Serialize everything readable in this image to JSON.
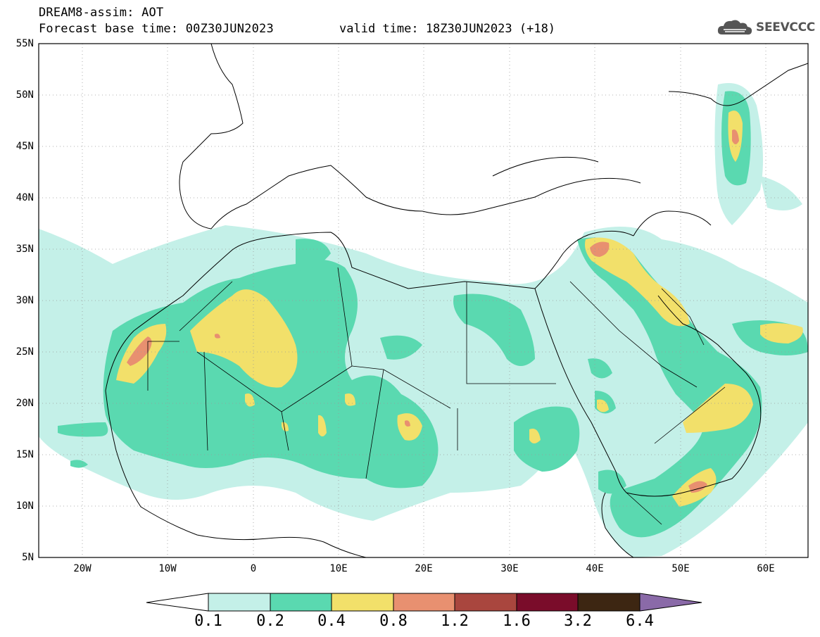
{
  "header": {
    "title": "DREAM8-assim: AOT",
    "base_time": "Forecast base time: 00Z30JUN2023",
    "valid_time": "valid time: 18Z30JUN2023 (+18)"
  },
  "logo": {
    "text": "SEEVCCC",
    "icon": "cloud-icon"
  },
  "map": {
    "lat_labels": [
      "55N",
      "50N",
      "45N",
      "40N",
      "35N",
      "30N",
      "25N",
      "20N",
      "15N",
      "10N",
      "5N"
    ],
    "lon_labels": [
      "20W",
      "10W",
      "0",
      "10E",
      "20E",
      "30E",
      "40E",
      "50E",
      "60E"
    ],
    "extent": {
      "lon": [
        -25,
        65
      ],
      "lat": [
        5,
        55
      ]
    }
  },
  "colorbar": {
    "labels": [
      "0.1",
      "0.2",
      "0.4",
      "0.8",
      "1.2",
      "1.6",
      "3.2",
      "6.4"
    ],
    "colors": [
      "#c4f0e8",
      "#5ad9b0",
      "#f2e06a",
      "#e89070",
      "#a9463e",
      "#7a0c2a",
      "#3d2612",
      "#8a6aa8"
    ]
  }
}
